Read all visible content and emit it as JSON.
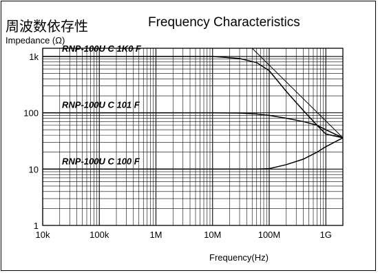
{
  "header": {
    "title_jp": "周波数依存性",
    "title_en": "Frequency Characteristics"
  },
  "chart_data": {
    "type": "line",
    "xscale": "log",
    "yscale": "log",
    "xlabel": "Frequency(Hz)",
    "ylabel": "Impedance (Ω)",
    "xlim": [
      10000,
      2000000000
    ],
    "ylim": [
      1,
      1400
    ],
    "x_ticks": [
      10000,
      100000,
      1000000,
      10000000,
      100000000,
      1000000000
    ],
    "x_tick_labels": [
      "10k",
      "100k",
      "1M",
      "10M",
      "100M",
      "1G"
    ],
    "y_ticks": [
      1,
      10,
      100,
      1000
    ],
    "y_tick_labels": [
      "1",
      "10",
      "100",
      "1k"
    ],
    "grid": true,
    "series": [
      {
        "name": "RNP-100U C 1K0 F",
        "points": [
          [
            10000,
            1000
          ],
          [
            1000000,
            1000
          ],
          [
            10000000,
            1000
          ],
          [
            30000000,
            920
          ],
          [
            60000000,
            780
          ],
          [
            100000000,
            560
          ],
          [
            200000000,
            240
          ],
          [
            400000000,
            110
          ],
          [
            700000000,
            60
          ],
          [
            1000000000,
            42
          ],
          [
            2000000000,
            36
          ]
        ]
      },
      {
        "name": "RNP-100U C 101 F",
        "points": [
          [
            10000,
            100
          ],
          [
            1000000,
            100
          ],
          [
            10000000,
            100
          ],
          [
            30000000,
            99
          ],
          [
            60000000,
            95
          ],
          [
            100000000,
            90
          ],
          [
            200000000,
            80
          ],
          [
            400000000,
            70
          ],
          [
            700000000,
            60
          ],
          [
            1000000000,
            50
          ],
          [
            2000000000,
            36
          ]
        ]
      },
      {
        "name": "RNP-100U C 100 F",
        "points": [
          [
            10000,
            10
          ],
          [
            1000000,
            10
          ],
          [
            10000000,
            10
          ],
          [
            60000000,
            10
          ],
          [
            100000000,
            10.2
          ],
          [
            200000000,
            12
          ],
          [
            400000000,
            15
          ],
          [
            700000000,
            20
          ],
          [
            1000000000,
            25
          ],
          [
            2000000000,
            36
          ]
        ]
      }
    ],
    "extra_lines": [
      {
        "points": [
          [
            50000000,
            1400
          ],
          [
            2000000000,
            36
          ]
        ]
      }
    ]
  }
}
